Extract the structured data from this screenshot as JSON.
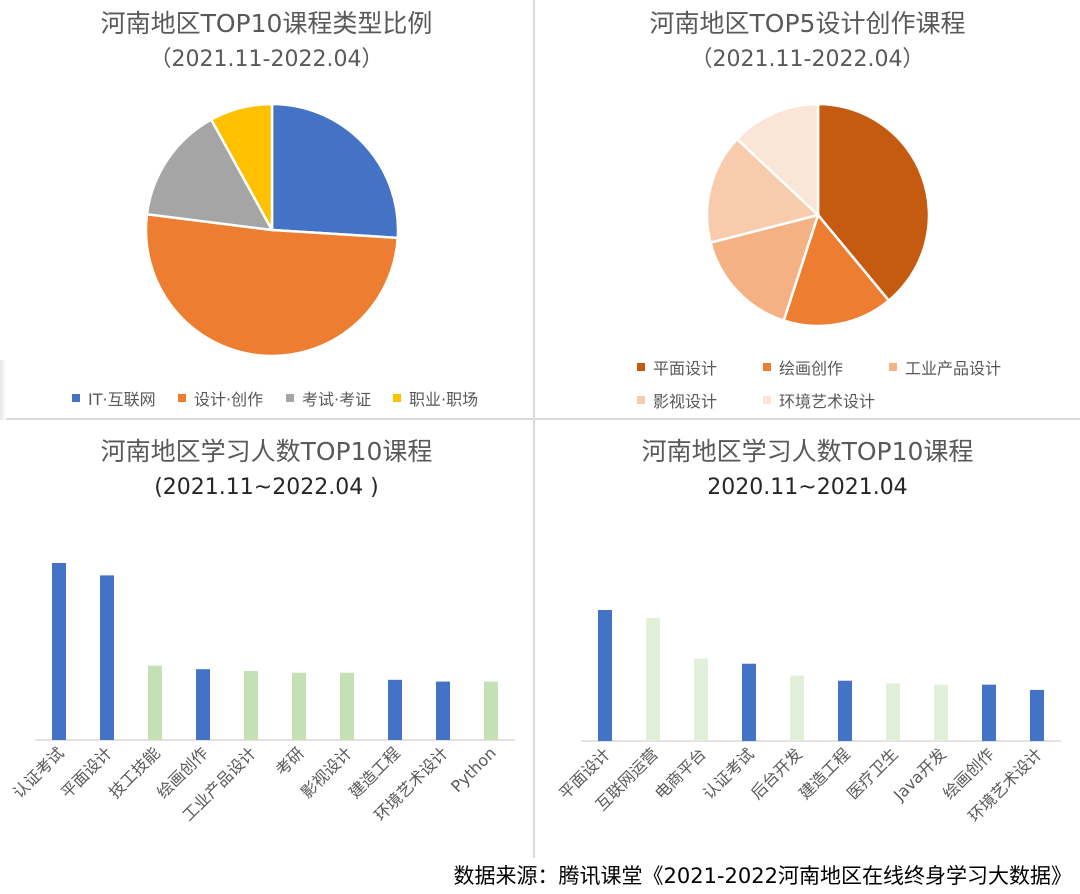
{
  "source": "数据来源：腾讯课堂《2021-2022河南地区在线终身学习大数据》",
  "chart_data": [
    {
      "type": "pie",
      "title": "河南地区TOP10课程类型比例",
      "subtitle": "（2021.11-2022.04）",
      "slices": [
        {
          "label": "IT·互联网",
          "value": 26,
          "color": "#4472c4"
        },
        {
          "label": "设计·创作",
          "value": 51,
          "color": "#ed7d31"
        },
        {
          "label": "考试·考证",
          "value": 15,
          "color": "#a5a5a5"
        },
        {
          "label": "职业·职场",
          "value": 8,
          "color": "#ffc000"
        }
      ],
      "legend": "bottom"
    },
    {
      "type": "pie",
      "title": "河南地区TOP5设计创作课程",
      "subtitle": "（2021.11-2022.04）",
      "slices": [
        {
          "label": "平面设计",
          "value": 39,
          "color": "#c55a11"
        },
        {
          "label": "绘画创作",
          "value": 16,
          "color": "#ed7d31"
        },
        {
          "label": "工业产品设计",
          "value": 16,
          "color": "#f4b183"
        },
        {
          "label": "影视设计",
          "value": 16,
          "color": "#f8cbad"
        },
        {
          "label": "环境艺术设计",
          "value": 13,
          "color": "#fbe5d6"
        }
      ],
      "legend": "bottom"
    },
    {
      "type": "bar",
      "title": "河南地区学习人数TOP10课程",
      "subtitle": "(2021.11~2022.04 )",
      "categories": [
        "认证考试",
        "平面设计",
        "技工技能",
        "绘画创作",
        "工业产品设计",
        "考研",
        "影视设计",
        "建造工程",
        "环境艺术设计",
        "Python"
      ],
      "values": [
        100,
        93,
        42,
        40,
        39,
        38,
        38,
        34,
        33,
        33
      ],
      "colors": [
        "#4472c4",
        "#4472c4",
        "#c5e0b4",
        "#4472c4",
        "#c5e0b4",
        "#c5e0b4",
        "#c5e0b4",
        "#4472c4",
        "#4472c4",
        "#c5e0b4"
      ],
      "ylim": [
        0,
        100
      ]
    },
    {
      "type": "bar",
      "title": "河南地区学习人数TOP10课程",
      "subtitle": "2020.11~2021.04",
      "categories": [
        "平面设计",
        "互联网运营",
        "电商平台",
        "认证考试",
        "后台开发",
        "建造工程",
        "医疗卫生",
        "Java开发",
        "绘画创作",
        "环境艺术设计"
      ],
      "values": [
        100,
        94,
        63,
        59,
        50,
        46,
        44,
        43,
        43,
        39
      ],
      "colors": [
        "#4472c4",
        "#e2f0d9",
        "#e2f0d9",
        "#4472c4",
        "#e2f0d9",
        "#4472c4",
        "#e2f0d9",
        "#e2f0d9",
        "#4472c4",
        "#4472c4"
      ],
      "ylim": [
        0,
        100
      ]
    }
  ]
}
